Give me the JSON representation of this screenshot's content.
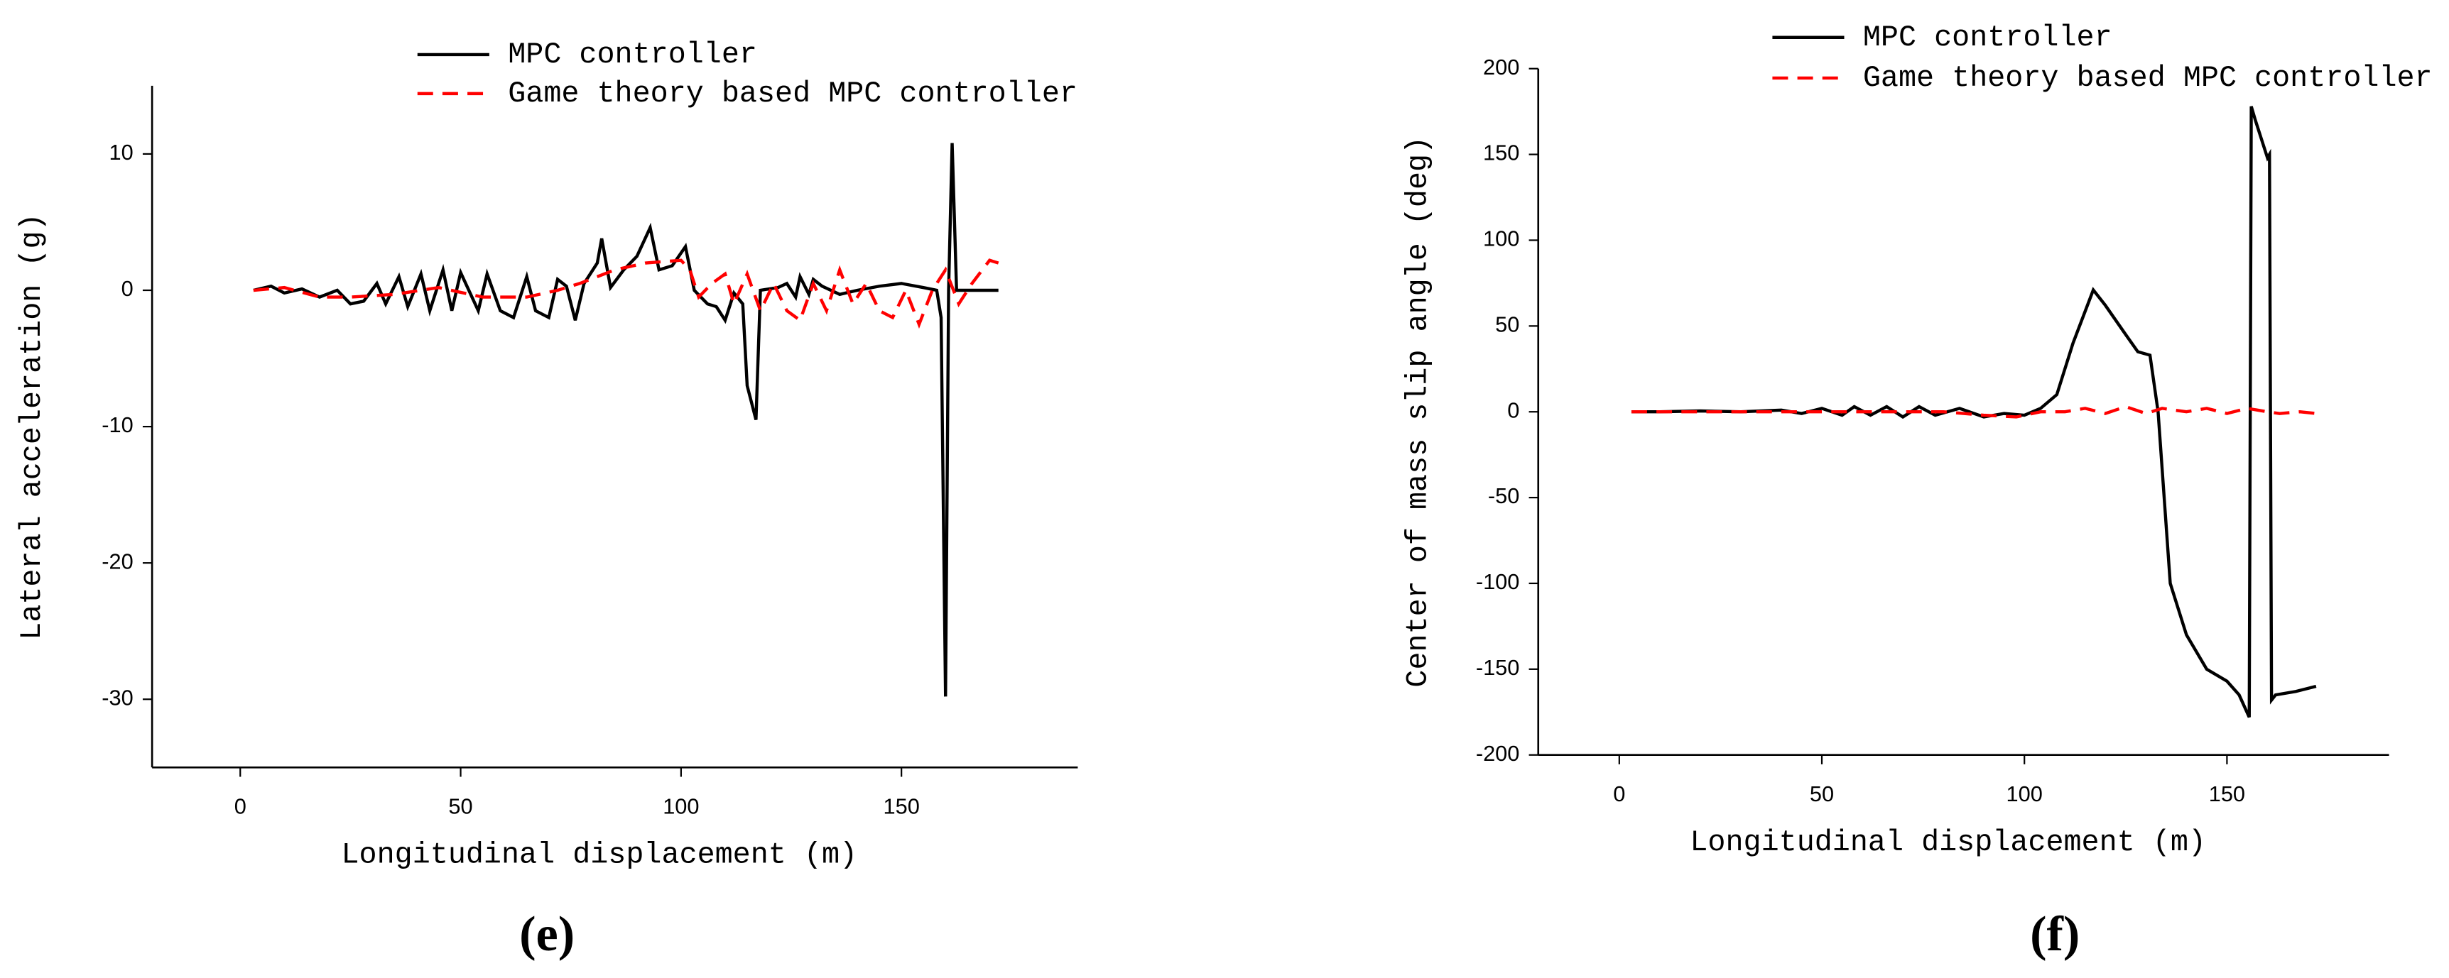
{
  "chart_data": [
    {
      "type": "line",
      "label": "(e)",
      "x_label": "Longitudinal displacement (m)",
      "y_label": "Lateral acceleration (g)",
      "xlim": [
        -20,
        190
      ],
      "ylim": [
        -35,
        15
      ],
      "xticks": [
        0,
        50,
        100,
        150
      ],
      "yticks": [
        -30,
        -20,
        -10,
        0,
        10
      ],
      "series": [
        {
          "name": "MPC controller",
          "color": "#000000",
          "dash": "solid",
          "x": [
            3,
            7,
            10,
            14,
            18,
            22,
            25,
            28,
            31,
            33,
            36,
            38,
            41,
            43,
            46,
            48,
            50,
            54,
            56,
            59,
            62,
            65,
            67,
            70,
            72,
            74,
            76,
            78,
            81,
            82,
            84,
            87,
            90,
            93,
            95,
            98,
            101,
            103,
            106,
            108,
            110,
            112,
            114,
            115,
            117,
            118,
            122,
            124,
            126,
            127,
            129,
            130,
            132,
            136,
            140,
            145,
            150,
            155,
            158,
            159,
            160,
            160.7,
            161.5,
            162.5,
            172
          ],
          "values": [
            0,
            0.3,
            -0.2,
            0.1,
            -0.5,
            0,
            -1,
            -0.8,
            0.5,
            -1,
            1,
            -1.2,
            1.2,
            -1.5,
            1.5,
            -1.5,
            1.3,
            -1.5,
            1.2,
            -1.5,
            -2,
            1,
            -1.5,
            -2,
            0.8,
            0.3,
            -2.2,
            0.5,
            2,
            3.8,
            0.2,
            1.5,
            2.5,
            4.6,
            1.5,
            1.8,
            3.2,
            0,
            -1,
            -1.2,
            -2.2,
            -0.2,
            -1,
            -7,
            -9.5,
            0,
            0.2,
            0.5,
            -0.5,
            1,
            -0.3,
            0.8,
            0.3,
            -0.3,
            0,
            0.3,
            0.5,
            0.2,
            0,
            -2,
            -29.8,
            0,
            10.8,
            0,
            0
          ]
        },
        {
          "name": "Game theory based MPC controller",
          "color": "#ff0000",
          "dash": "dashed",
          "x": [
            3,
            10,
            18,
            25,
            35,
            45,
            55,
            65,
            72,
            77,
            85,
            92,
            100,
            102,
            104,
            107,
            110,
            112,
            115,
            118,
            121,
            124,
            127,
            130,
            133,
            136,
            139,
            142,
            145,
            148,
            151,
            154,
            157,
            160,
            163,
            166,
            170,
            172
          ],
          "values": [
            0,
            0.2,
            -0.5,
            -0.5,
            -0.3,
            0.2,
            -0.5,
            -0.5,
            0,
            0.5,
            1.5,
            2,
            2.2,
            1.5,
            -0.5,
            0.5,
            1.2,
            -1,
            1.2,
            -1.5,
            0.5,
            -1.5,
            -2.2,
            0.5,
            -1.5,
            1.5,
            -1,
            0.5,
            -1.5,
            -2,
            0,
            -2.5,
            0,
            1.5,
            -1,
            0.5,
            2.2,
            2
          ]
        }
      ]
    },
    {
      "type": "line",
      "label": "(f)",
      "x_label": "Longitudinal displacement (m)",
      "y_label": "Center of mass slip angle (deg)",
      "xlim": [
        -20,
        190
      ],
      "ylim": [
        -200,
        200
      ],
      "xticks": [
        0,
        50,
        100,
        150
      ],
      "yticks": [
        -200,
        -150,
        -100,
        -50,
        0,
        50,
        100,
        150,
        200
      ],
      "series": [
        {
          "name": "MPC controller",
          "color": "#000000",
          "dash": "solid",
          "x": [
            3,
            10,
            20,
            30,
            40,
            45,
            50,
            55,
            58,
            62,
            66,
            70,
            74,
            78,
            84,
            90,
            95,
            100,
            104,
            108,
            112,
            117,
            120,
            125,
            128,
            131,
            133,
            136,
            140,
            145,
            150,
            153,
            155.5,
            156,
            157,
            160,
            160.5,
            161,
            162,
            167,
            172
          ],
          "values": [
            0,
            0,
            0.5,
            0,
            1,
            -1,
            2,
            -2,
            3,
            -2,
            3,
            -3,
            3,
            -2,
            2,
            -3,
            -1,
            -2,
            2,
            10,
            40,
            71,
            62,
            45,
            35,
            33,
            0,
            -100,
            -130,
            -150,
            -157,
            -165,
            -178,
            178,
            170,
            148,
            150,
            -168,
            -165,
            -163,
            -160
          ]
        },
        {
          "name": "Game theory based MPC controller",
          "color": "#ff0000",
          "dash": "dashed",
          "x": [
            3,
            20,
            40,
            60,
            80,
            90,
            98,
            104,
            110,
            115,
            120,
            125,
            130,
            134,
            140,
            145,
            150,
            155,
            160,
            163,
            168,
            172
          ],
          "values": [
            0,
            0,
            0,
            0,
            0,
            -2,
            -3,
            0,
            0,
            2,
            -1,
            3,
            -1,
            2,
            0,
            2,
            -1,
            2,
            0,
            -1,
            0,
            -1
          ]
        }
      ]
    }
  ]
}
